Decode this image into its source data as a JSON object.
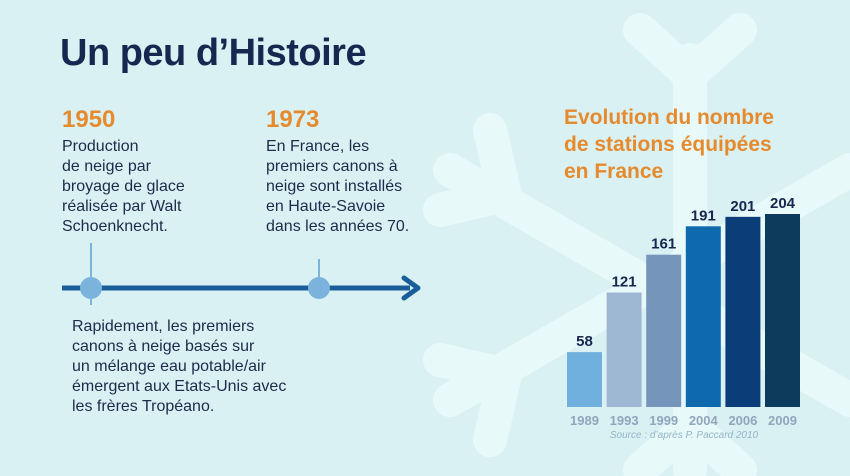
{
  "page": {
    "title": "Un peu d’Histoire"
  },
  "timeline": {
    "events": [
      {
        "year": "1950",
        "lines": [
          "Production",
          "de neige par",
          "broyage de glace",
          "réalisée par Walt",
          "Schoenknecht."
        ]
      },
      {
        "year": "1973",
        "lines": [
          "En France, les",
          "premiers canons à",
          "neige sont installés",
          "en Haute-Savoie",
          "dans les années 70."
        ]
      }
    ],
    "note_lines": [
      "Rapidement, les premiers",
      "canons à neige basés sur",
      "un mélange eau potable/air",
      "émergent aux Etats-Unis avec",
      "les frères Tropéano."
    ]
  },
  "chart_data": {
    "type": "bar",
    "title_lines": [
      "Evolution du nombre",
      "de stations équipées",
      "en France"
    ],
    "categories": [
      "1989",
      "1993",
      "1999",
      "2004",
      "2006",
      "2009"
    ],
    "values": [
      58,
      121,
      161,
      191,
      201,
      204
    ],
    "value_labels": [
      "58",
      "121",
      "161",
      "191",
      "201",
      "204"
    ],
    "bar_colors": [
      "#6fb0de",
      "#9eb8d4",
      "#7595ba",
      "#0e69ad",
      "#0b3e79",
      "#0c3b5b"
    ],
    "ylim": [
      0,
      204
    ],
    "source": "Source : d’après P. Paccard 2010"
  },
  "colors": {
    "background": "#d9f1f3",
    "title": "#16284f",
    "accent": "#e68a2e",
    "timeline_line": "#1a5e99",
    "timeline_dot": "#7cb3dc",
    "axis_label": "#8fa6bd"
  }
}
